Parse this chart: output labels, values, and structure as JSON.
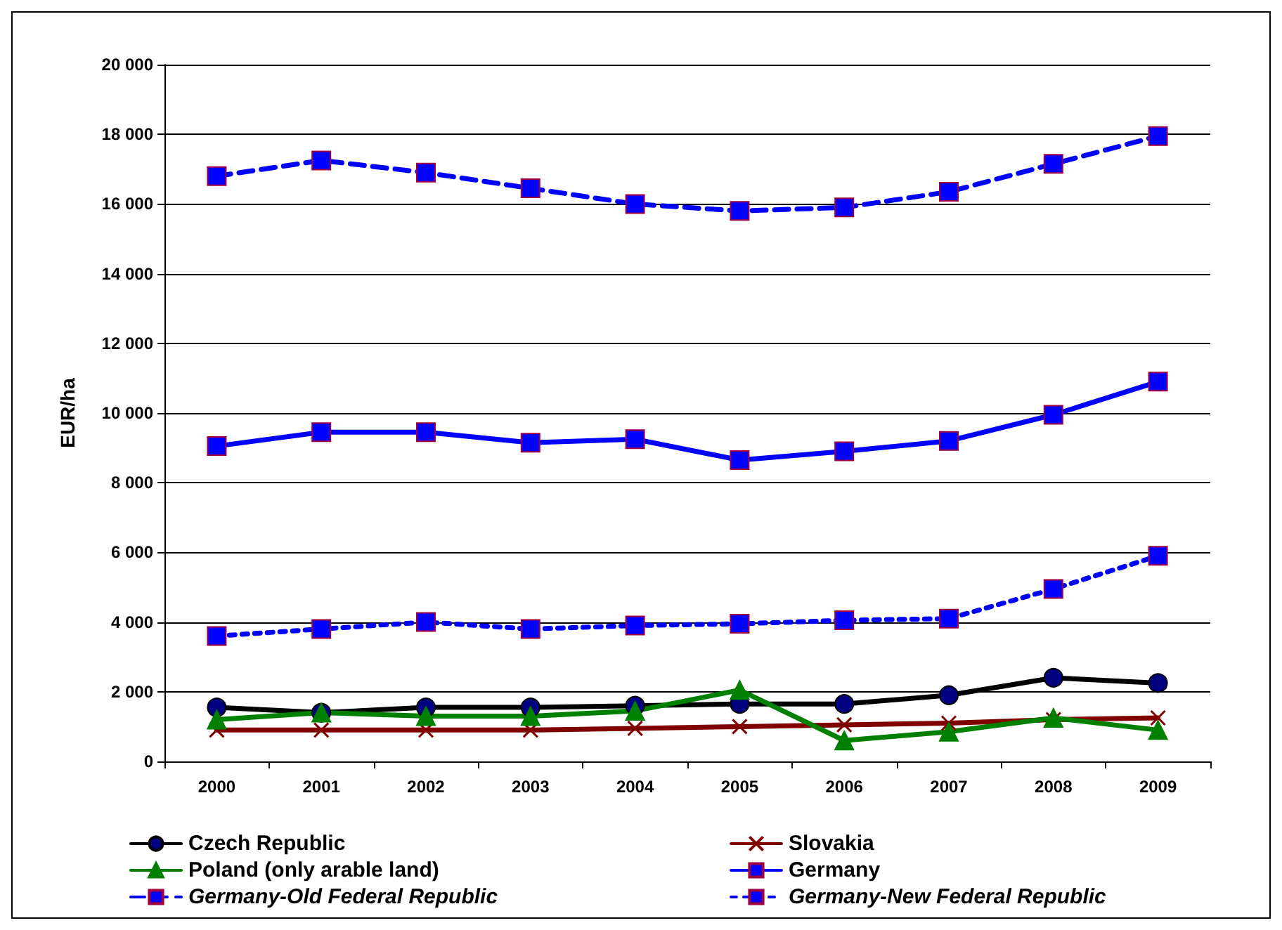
{
  "chart_data": {
    "type": "line",
    "ylabel": "EUR/ha",
    "categories": [
      "2000",
      "2001",
      "2002",
      "2003",
      "2004",
      "2005",
      "2006",
      "2007",
      "2008",
      "2009"
    ],
    "ylim": [
      0,
      20000
    ],
    "yticks": [
      {
        "value": 0,
        "label": "0"
      },
      {
        "value": 2000,
        "label": "2 000"
      },
      {
        "value": 4000,
        "label": "4 000"
      },
      {
        "value": 6000,
        "label": "6 000"
      },
      {
        "value": 8000,
        "label": "8 000"
      },
      {
        "value": 10000,
        "label": "10 000"
      },
      {
        "value": 12000,
        "label": "12 000"
      },
      {
        "value": 14000,
        "label": "14 000"
      },
      {
        "value": 16000,
        "label": "16 000"
      },
      {
        "value": 18000,
        "label": "18 000"
      },
      {
        "value": 20000,
        "label": "20 000"
      }
    ],
    "grid": "y",
    "legend": "bottom",
    "line_style": "solid",
    "series": [
      {
        "name": "Czech Republic",
        "color": "#000000",
        "marker": "circle",
        "values": [
          1550,
          1400,
          1550,
          1550,
          1600,
          1650,
          1650,
          1900,
          2400,
          2250
        ]
      },
      {
        "name": "Slovakia",
        "color": "#800000",
        "marker": "cross",
        "values": [
          900,
          900,
          900,
          900,
          950,
          1000,
          1050,
          1100,
          1200,
          1250
        ]
      },
      {
        "name": "Poland (only arable land)",
        "color": "#008000",
        "marker": "triangle",
        "values": [
          1200,
          1400,
          1300,
          1300,
          1450,
          2050,
          600,
          850,
          1250,
          900
        ]
      },
      {
        "name": "Germany",
        "color": "#0000ff",
        "marker": "square",
        "values": [
          9050,
          9450,
          9450,
          9150,
          9250,
          8650,
          8900,
          9200,
          9950,
          10900
        ]
      },
      {
        "name": "Germany-Old Federal Republic",
        "color": "#0000ff",
        "marker": "square",
        "line_style": "dashed",
        "values": [
          16800,
          17250,
          16900,
          16450,
          16000,
          15800,
          15900,
          16350,
          17150,
          17950
        ]
      },
      {
        "name": "Germany-New Federal Republic",
        "color": "#0000ff",
        "marker": "square",
        "line_style": "dotted",
        "values": [
          3600,
          3800,
          4000,
          3800,
          3900,
          3950,
          4050,
          4100,
          4950,
          5900
        ]
      }
    ]
  }
}
